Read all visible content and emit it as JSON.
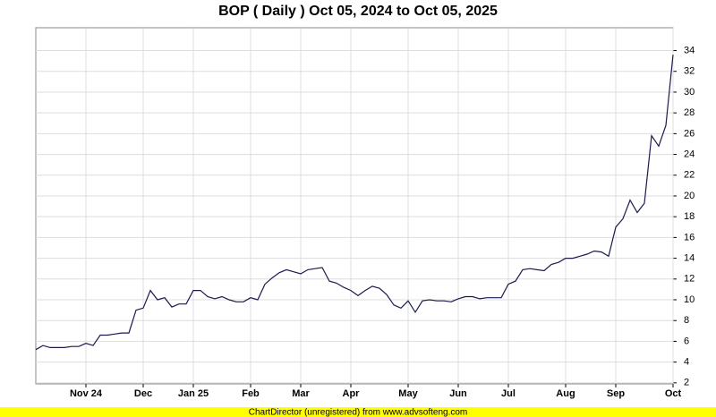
{
  "chart_data": {
    "type": "line",
    "title": "BOP ( Daily ) Oct 05, 2024 to Oct 05, 2025",
    "footer": "ChartDirector (unregistered) from www.advsofteng.com",
    "categories": [
      null,
      null,
      null,
      null,
      null,
      null,
      null,
      "Nov 24",
      null,
      null,
      null,
      null,
      null,
      null,
      null,
      "Dec",
      null,
      null,
      null,
      null,
      null,
      null,
      "Jan 25",
      null,
      null,
      null,
      null,
      null,
      null,
      null,
      "Feb",
      null,
      null,
      null,
      null,
      null,
      null,
      "Mar",
      null,
      null,
      null,
      null,
      null,
      null,
      "Apr",
      null,
      null,
      null,
      null,
      null,
      null,
      null,
      "May",
      null,
      null,
      null,
      null,
      null,
      null,
      "Jun",
      null,
      null,
      null,
      null,
      null,
      null,
      "Jul",
      null,
      null,
      null,
      null,
      null,
      null,
      null,
      "Aug",
      null,
      null,
      null,
      null,
      null,
      null,
      "Sep",
      null,
      null,
      null,
      null,
      null,
      null,
      null,
      "Oct"
    ],
    "series": [
      {
        "name": "BOP",
        "color": "#1a1a4e",
        "values": [
          5.2,
          5.6,
          5.4,
          5.4,
          5.4,
          5.5,
          5.5,
          5.8,
          5.6,
          6.6,
          6.6,
          6.7,
          6.8,
          6.8,
          9.0,
          9.2,
          10.9,
          10.0,
          10.2,
          9.3,
          9.6,
          9.6,
          10.9,
          10.9,
          10.3,
          10.1,
          10.3,
          10.0,
          9.8,
          9.8,
          10.2,
          10.0,
          11.5,
          12.1,
          12.6,
          12.9,
          12.7,
          12.5,
          12.9,
          13.0,
          13.1,
          11.8,
          11.6,
          11.2,
          10.9,
          10.4,
          10.9,
          11.3,
          11.1,
          10.5,
          9.5,
          9.2,
          9.9,
          8.8,
          9.9,
          10.0,
          9.9,
          9.9,
          9.8,
          10.1,
          10.3,
          10.3,
          10.1,
          10.2,
          10.2,
          10.2,
          11.5,
          11.8,
          12.9,
          13.0,
          12.9,
          12.8,
          13.4,
          13.6,
          14.0,
          14.0,
          14.2,
          14.4,
          14.7,
          14.6,
          14.2,
          17.0,
          17.8,
          19.6,
          18.4,
          19.3,
          25.8,
          24.8,
          26.8,
          33.6
        ]
      }
    ],
    "ylim": [
      1.9,
      36.2
    ],
    "yticks": [
      2,
      4,
      6,
      8,
      10,
      12,
      14,
      16,
      18,
      20,
      22,
      24,
      26,
      28,
      30,
      32,
      34
    ],
    "grid": true
  }
}
